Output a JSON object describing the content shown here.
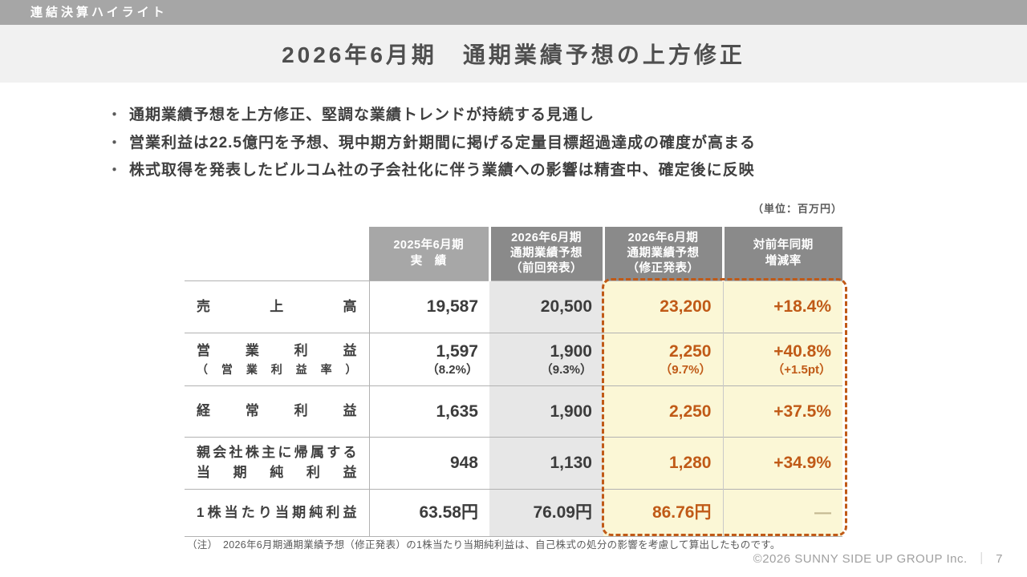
{
  "topbar": {
    "label": "連結決算ハイライト"
  },
  "title": "2026年6月期　通期業績予想の上方修正",
  "bullet_glyph": "・",
  "bullets": [
    "通期業績予想を上方修正、堅調な業績トレンドが持続する見通し",
    "営業利益は22.5億円を予想、現中期方針期間に掲げる定量目標超過達成の確度が高まる",
    "株式取得を発表したビルコム社の子会社化に伴う業績への影響は精査中、確定後に反映"
  ],
  "table": {
    "unit_note": "（単位：百万円）",
    "headers": [
      {
        "lines": []
      },
      {
        "lines": [
          "2025年6月期",
          "実　績"
        ]
      },
      {
        "lines": [
          "2026年6月期",
          "通期業績予想",
          "（前回発表）"
        ]
      },
      {
        "lines": [
          "2026年6月期",
          "通期業績予想",
          "（修正発表）"
        ]
      },
      {
        "lines": [
          "対前年同期",
          "増減率"
        ]
      }
    ],
    "rows": [
      {
        "label_lines": [
          "売上高"
        ],
        "actual": "19,587",
        "prev": "20,500",
        "revised": "23,200",
        "yoy": "+18.4%"
      },
      {
        "label_lines": [
          "営業利益",
          "（営業利益率）"
        ],
        "actual": "1,597",
        "actual_sub": "（8.2%）",
        "prev": "1,900",
        "prev_sub": "（9.3%）",
        "revised": "2,250",
        "revised_sub": "（9.7%）",
        "yoy": "+40.8%",
        "yoy_sub": "（+1.5pt）"
      },
      {
        "label_lines": [
          "経常利益"
        ],
        "actual": "1,635",
        "prev": "1,900",
        "revised": "2,250",
        "yoy": "+37.5%"
      },
      {
        "label_lines": [
          "親会社株主に帰属する",
          "当期純利益"
        ],
        "actual": "948",
        "prev": "1,130",
        "revised": "1,280",
        "yoy": "+34.9%"
      },
      {
        "label_lines": [
          "1株当たり当期純利益"
        ],
        "actual": "63.58円",
        "prev": "76.09円",
        "revised": "86.76円",
        "yoy": "—"
      }
    ]
  },
  "footnote": "（注）　2026年6月期通期業績予想（修正発表）の1株当たり当期純利益は、自己株式の処分の影響を考慮して算出したものです。",
  "footer": {
    "copyright": "©2026 SUNNY SIDE UP GROUP Inc.",
    "separator": "｜",
    "page_number": "7"
  },
  "colors": {
    "accent_orange": "#c05a17",
    "highlight_yellow": "#fbf7d6",
    "header_dark_gray": "#8a8a8a",
    "header_light_gray": "#a7a7a7",
    "prev_column_gray": "#e7e7e7",
    "top_bar_gray": "#a6a6a6",
    "title_band_gray": "#f1f1f1",
    "muted_dash": "#c3b891"
  }
}
